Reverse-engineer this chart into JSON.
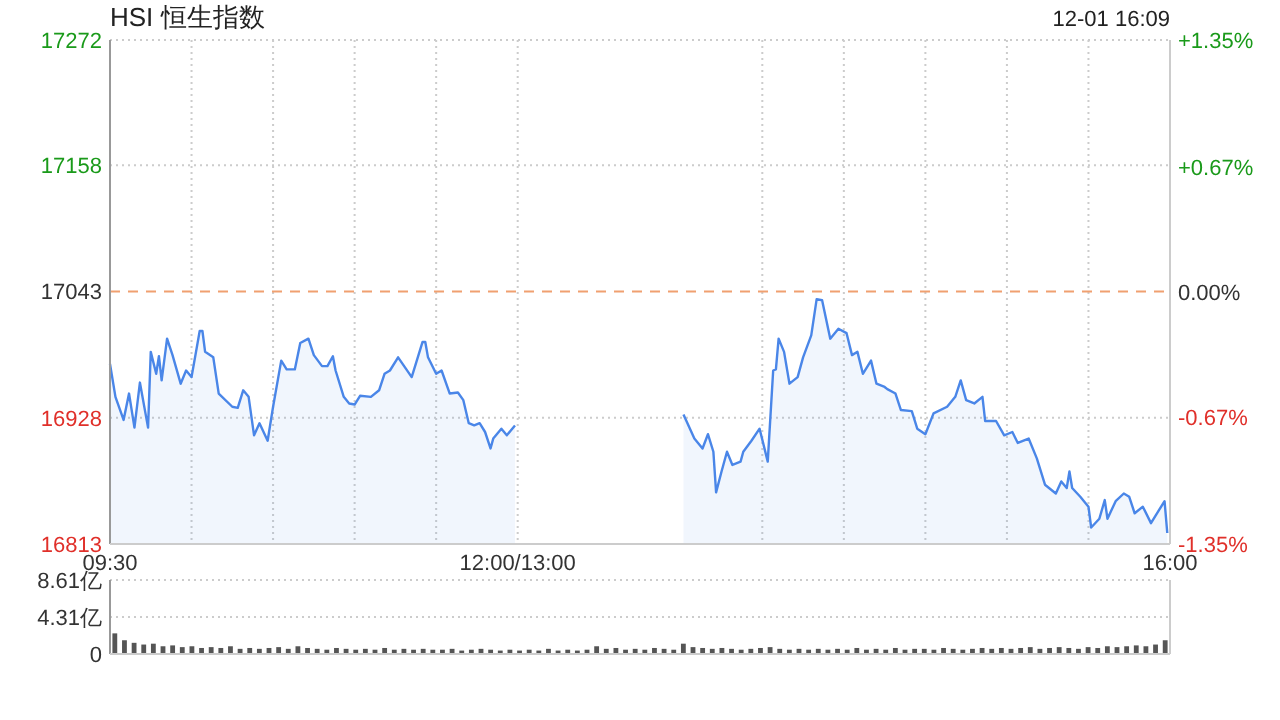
{
  "chart_data": [
    {
      "type": "area",
      "title": "HSI 恒生指数",
      "subtitle": "12-01 16:09",
      "xlim": [
        "--12-01T09:30",
        "--12-01T16:00"
      ],
      "xticks": [
        {
          "value": "--12-01T09:30",
          "label": "09:30"
        },
        {
          "value": "--12-01T10:00",
          "label": null
        },
        {
          "value": "--12-01T10:30",
          "label": null
        },
        {
          "value": "--12-01T11:00",
          "label": null
        },
        {
          "value": "--12-01T11:30",
          "label": null
        },
        {
          "value": "--12-01T12:00",
          "label": "12:00/13:00"
        },
        {
          "value": "--12-01T13:30",
          "label": null
        },
        {
          "value": "--12-01T14:00",
          "label": null
        },
        {
          "value": "--12-01T14:30",
          "label": null
        },
        {
          "value": "--12-01T15:00",
          "label": null
        },
        {
          "value": "--12-01T15:30",
          "label": null
        },
        {
          "value": "--12-01T16:00",
          "label": "16:00"
        }
      ],
      "ylim": [
        16813,
        17272
      ],
      "yticks": [
        16813,
        16928,
        17043,
        17158,
        17272
      ],
      "y2lim": [
        -1.35,
        1.35
      ],
      "y2ticks": [
        {
          "value": -1.35,
          "label": "-1.35%"
        },
        {
          "value": -0.67,
          "label": "-0.67%"
        },
        {
          "value": 0,
          "label": "0.00%"
        },
        {
          "value": 0.67,
          "label": "+0.67%"
        },
        {
          "value": 1.35,
          "label": "+1.35%"
        }
      ],
      "grid": true,
      "ref_lines": [
        {
          "axis": "y",
          "value": 17043,
          "color": "#f0a070",
          "line_style": "dashed"
        }
      ],
      "series": [
        {
          "color": "#4a86e8",
          "x": [
            "--12-01T09:30",
            "--12-01T09:32",
            "--12-01T09:35",
            "--12-01T09:37",
            "--12-01T09:39",
            "--12-01T09:41",
            "--12-01T09:44",
            "--12-01T09:45",
            "--12-01T09:47",
            "--12-01T09:48",
            "--12-01T09:49",
            "--12-01T09:51",
            "--12-01T09:53",
            "--12-01T09:56",
            "--12-01T09:58",
            "--12-01T10:00",
            "--12-01T10:03",
            "--12-01T10:04",
            "--12-01T10:05",
            "--12-01T10:08",
            "--12-01T10:10",
            "--12-01T10:15",
            "--12-01T10:17",
            "--12-01T10:19",
            "--12-01T10:21",
            "--12-01T10:23",
            "--12-01T10:25",
            "--12-01T10:28",
            "--12-01T10:30",
            "--12-01T10:33",
            "--12-01T10:35",
            "--12-01T10:38",
            "--12-01T10:40",
            "--12-01T10:43",
            "--12-01T10:45",
            "--12-01T10:48",
            "--12-01T10:50",
            "--12-01T10:52",
            "--12-01T10:53",
            "--12-01T10:56",
            "--12-01T10:58",
            "--12-01T11:00",
            "--12-01T11:02",
            "--12-01T11:06",
            "--12-01T11:09",
            "--12-01T11:11",
            "--12-01T11:13",
            "--12-01T11:16",
            "--12-01T11:21",
            "--12-01T11:25",
            "--12-01T11:26",
            "--12-01T11:27",
            "--12-01T11:30",
            "--12-01T11:32",
            "--12-01T11:35",
            "--12-01T11:38",
            "--12-01T11:40",
            "--12-01T11:42",
            "--12-01T11:44",
            "--12-01T11:46",
            "--12-01T11:48",
            "--12-01T11:50",
            "--12-01T11:51",
            "--12-01T11:54",
            "--12-01T11:56",
            "--12-01T11:59",
            "--12-01T13:01",
            "--12-01T13:05",
            "--12-01T13:08",
            "--12-01T13:10",
            "--12-01T13:12",
            "--12-01T13:13",
            "--12-01T13:15",
            "--12-01T13:17",
            "--12-01T13:19",
            "--12-01T13:22",
            "--12-01T13:23",
            "--12-01T13:26",
            "--12-01T13:29",
            "--12-01T13:32",
            "--12-01T13:34",
            "--12-01T13:35",
            "--12-01T13:36",
            "--12-01T13:38",
            "--12-01T13:40",
            "--12-01T13:43",
            "--12-01T13:45",
            "--12-01T13:48",
            "--12-01T13:50",
            "--12-01T13:52",
            "--12-01T13:55",
            "--12-01T13:58",
            "--12-01T14:01",
            "--12-01T14:03",
            "--12-01T14:05",
            "--12-01T14:07",
            "--12-01T14:10",
            "--12-01T14:12",
            "--12-01T14:15",
            "--12-01T14:16",
            "--12-01T14:19",
            "--12-01T14:21",
            "--12-01T14:25",
            "--12-01T14:27",
            "--12-01T14:30",
            "--12-01T14:33",
            "--12-01T14:38",
            "--12-01T14:41",
            "--12-01T14:43",
            "--12-01T14:45",
            "--12-01T14:48",
            "--12-01T14:51",
            "--12-01T14:52",
            "--12-01T14:56",
            "--12-01T14:59",
            "--12-01T15:02",
            "--12-01T15:04",
            "--12-01T15:08",
            "--12-01T15:11",
            "--12-01T15:14",
            "--12-01T15:18",
            "--12-01T15:20",
            "--12-01T15:22",
            "--12-01T15:23",
            "--12-01T15:24",
            "--12-01T15:27",
            "--12-01T15:30",
            "--12-01T15:31",
            "--12-01T15:34",
            "--12-01T15:36",
            "--12-01T15:37",
            "--12-01T15:40",
            "--12-01T15:43",
            "--12-01T15:45",
            "--12-01T15:47",
            "--12-01T15:50",
            "--12-01T15:53",
            "--12-01T15:56",
            "--12-01T15:58",
            "--12-01T15:59"
          ],
          "values": [
            16977,
            16947,
            16926,
            16950,
            16919,
            16960,
            16919,
            16988,
            16968,
            16984,
            16962,
            17000,
            16985,
            16959,
            16971,
            16965,
            17007,
            17007,
            16988,
            16983,
            16950,
            16938,
            16937,
            16953,
            16947,
            16912,
            16923,
            16907,
            16938,
            16980,
            16972,
            16972,
            16996,
            17000,
            16985,
            16975,
            16975,
            16984,
            16971,
            16947,
            16941,
            16940,
            16948,
            16947,
            16953,
            16968,
            16971,
            16983,
            16965,
            16997,
            16997,
            16983,
            16968,
            16971,
            16950,
            16951,
            16944,
            16923,
            16921,
            16923,
            16915,
            16900,
            16909,
            16918,
            16912,
            16921,
            16931,
            16909,
            16900,
            16913,
            16897,
            16860,
            16879,
            16897,
            16885,
            16888,
            16897,
            16907,
            16918,
            16888,
            16971,
            16972,
            17000,
            16988,
            16959,
            16965,
            16983,
            17003,
            17036,
            17035,
            17000,
            17009,
            17005,
            16985,
            16988,
            16968,
            16980,
            16959,
            16956,
            16954,
            16950,
            16935,
            16934,
            16918,
            16913,
            16932,
            16938,
            16947,
            16962,
            16944,
            16941,
            16947,
            16925,
            16925,
            16912,
            16915,
            16905,
            16909,
            16891,
            16867,
            16859,
            16870,
            16864,
            16879,
            16864,
            16856,
            16847,
            16828,
            16836,
            16853,
            16836,
            16852,
            16859,
            16856,
            16841,
            16847,
            16832,
            16844,
            16852,
            16823
          ]
        }
      ]
    },
    {
      "type": "bar",
      "tick_labels": "y",
      "categories": [
        null,
        null,
        null,
        null,
        null,
        null,
        null,
        null,
        null,
        null,
        null,
        null,
        null,
        null,
        null,
        null,
        null,
        null,
        null,
        null,
        null,
        null,
        null,
        null,
        null,
        null,
        null,
        null,
        null,
        null,
        null,
        null,
        null,
        null,
        null,
        null,
        null,
        null,
        null,
        null,
        null,
        null,
        null,
        null,
        null,
        null,
        null,
        null,
        null,
        null,
        null,
        null,
        null,
        null,
        null,
        null,
        null,
        null,
        null,
        null,
        null,
        null,
        null,
        null,
        null,
        null,
        null,
        null,
        null,
        null,
        null,
        null,
        null,
        null,
        null,
        null,
        null,
        null,
        null,
        null,
        null,
        null,
        null,
        null,
        null,
        null,
        null,
        null,
        null,
        null,
        null,
        null,
        null,
        null,
        null,
        null,
        null,
        null,
        null,
        null,
        null,
        null,
        null,
        null,
        null,
        null,
        null,
        null,
        null,
        null
      ],
      "ylim": [
        0,
        8.61
      ],
      "yticks": [
        0,
        {
          "value": 4.31,
          "label": "4.31亿"
        },
        {
          "value": 8.61,
          "label": "8.61亿"
        }
      ],
      "grid": "y",
      "series": [
        {
          "color": "#555555",
          "values": [
            2.4,
            1.6,
            1.3,
            1.1,
            1.2,
            0.9,
            1.0,
            0.8,
            0.9,
            0.7,
            0.8,
            0.7,
            0.9,
            0.6,
            0.7,
            0.6,
            0.7,
            0.8,
            0.6,
            0.9,
            0.7,
            0.6,
            0.5,
            0.7,
            0.6,
            0.5,
            0.6,
            0.5,
            0.7,
            0.5,
            0.6,
            0.5,
            0.6,
            0.5,
            0.5,
            0.6,
            0.4,
            0.5,
            0.6,
            0.5,
            0.4,
            0.5,
            0.4,
            0.5,
            0.4,
            0.6,
            0.4,
            0.5,
            0.4,
            0.5,
            0.9,
            0.6,
            0.7,
            0.5,
            0.6,
            0.5,
            0.7,
            0.6,
            0.5,
            1.2,
            0.8,
            0.7,
            0.6,
            0.7,
            0.6,
            0.5,
            0.6,
            0.7,
            0.8,
            0.6,
            0.5,
            0.6,
            0.5,
            0.6,
            0.5,
            0.6,
            0.5,
            0.7,
            0.5,
            0.6,
            0.5,
            0.7,
            0.5,
            0.6,
            0.6,
            0.5,
            0.7,
            0.6,
            0.5,
            0.6,
            0.7,
            0.6,
            0.7,
            0.6,
            0.7,
            0.8,
            0.6,
            0.7,
            0.8,
            0.7,
            0.6,
            0.8,
            0.7,
            0.9,
            0.8,
            0.9,
            1.0,
            0.9,
            1.1,
            1.6
          ]
        }
      ]
    }
  ]
}
